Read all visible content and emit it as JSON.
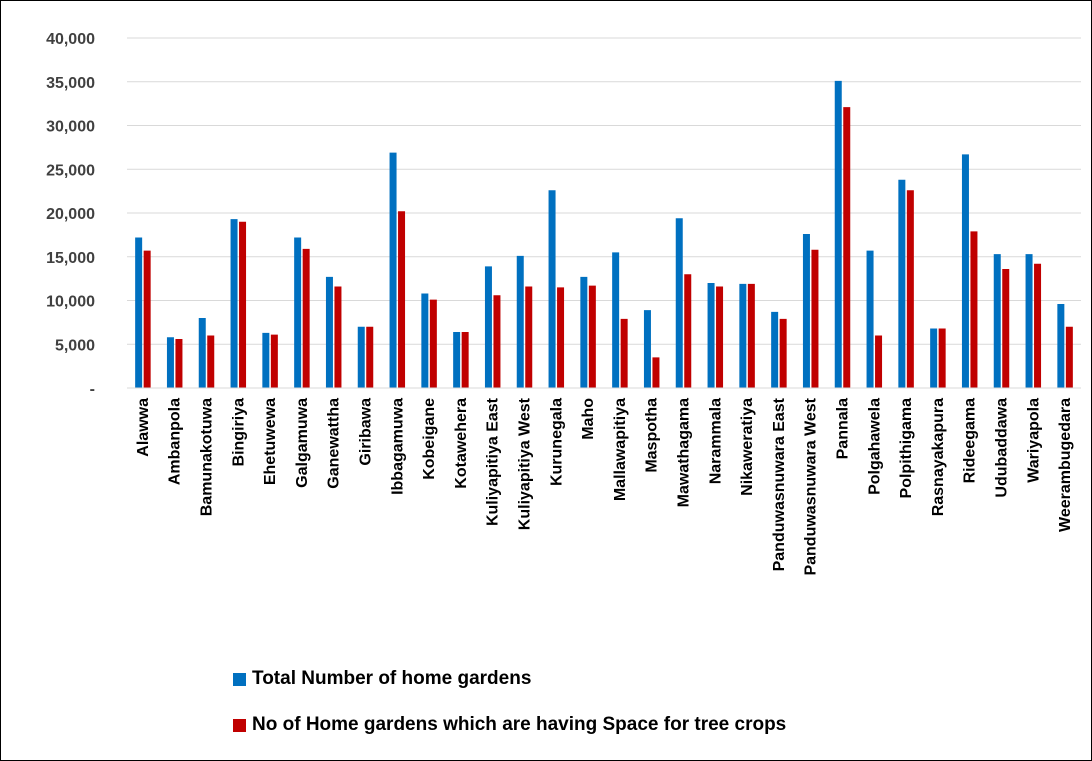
{
  "chart_data": {
    "type": "bar",
    "ylim": [
      0,
      40000
    ],
    "yticks": [
      0,
      5000,
      10000,
      15000,
      20000,
      25000,
      30000,
      35000,
      40000
    ],
    "ytick_labels": [
      "-",
      "5,000",
      "10,000",
      "15,000",
      "20,000",
      "25,000",
      "30,000",
      "35,000",
      "40,000"
    ],
    "grid": true,
    "legend_position": "bottom",
    "categories": [
      "Alawwa",
      "Ambanpola",
      "Bamunakotuwa",
      "Bingiriya",
      "Ehetuwewa",
      "Galgamuwa",
      "Ganewattha",
      "Giribawa",
      "Ibbagamuwa",
      "Kobeigane",
      "Kotawehera",
      "Kuliyapitiya East",
      "Kuliyapitiya West",
      "Kurunegala",
      "Maho",
      "Mallawapitiya",
      "Maspotha",
      "Mawathagama",
      "Narammala",
      "Nikaweratiya",
      "Panduwasnuwara East",
      "Panduwasnuwara West",
      "Pannala",
      "Polgahawela",
      "Polpithigama",
      "Rasnayakapura",
      "Rideegama",
      "Udubaddawa",
      "Wariyapola",
      "Weerambugedara"
    ],
    "series": [
      {
        "name": "Total Number of home gardens",
        "color": "#0070c0",
        "values": [
          17200,
          5800,
          8000,
          19300,
          6300,
          17200,
          12700,
          7000,
          26900,
          10800,
          6400,
          13900,
          15100,
          22600,
          12700,
          15500,
          8900,
          19400,
          12000,
          11900,
          8700,
          17600,
          35100,
          15700,
          23800,
          6800,
          26700,
          15300,
          15300,
          9600
        ]
      },
      {
        "name": "No of Home gardens which are having Space for tree crops",
        "color": "#c00000",
        "values": [
          15700,
          5600,
          6000,
          19000,
          6100,
          15900,
          11600,
          7000,
          20200,
          10100,
          6400,
          10600,
          11600,
          11500,
          11700,
          7900,
          3500,
          13000,
          11600,
          11900,
          7900,
          15800,
          32100,
          6000,
          22600,
          6800,
          17900,
          13600,
          14200,
          7000
        ]
      }
    ]
  }
}
